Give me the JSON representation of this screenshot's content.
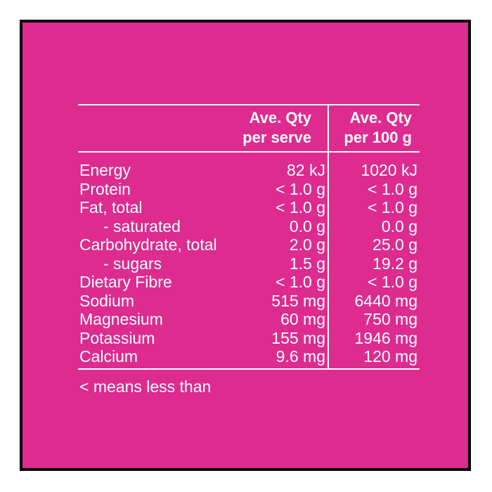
{
  "header": {
    "serve_line1": "Ave. Qty",
    "serve_line2": "per serve",
    "per100_line1": "Ave. Qty",
    "per100_line2": "per 100 g"
  },
  "rows": [
    {
      "name": "Energy",
      "serve": "82 kJ",
      "per100": "1020 kJ"
    },
    {
      "name": "Protein",
      "serve": "< 1.0 g",
      "per100": "< 1.0 g"
    },
    {
      "name": "Fat, total",
      "serve": "< 1.0 g",
      "per100": "< 1.0 g"
    },
    {
      "name": "- saturated",
      "serve": "0.0 g",
      "per100": "0.0 g",
      "indent": true
    },
    {
      "name": "Carbohydrate, total",
      "serve": "2.0 g",
      "per100": "25.0 g"
    },
    {
      "name": "- sugars",
      "serve": "1.5 g",
      "per100": "19.2 g",
      "indent": true
    },
    {
      "name": "Dietary Fibre",
      "serve": "< 1.0 g",
      "per100": "< 1.0 g"
    },
    {
      "name": "Sodium",
      "serve": "515 mg",
      "per100": "6440 mg"
    },
    {
      "name": "Magnesium",
      "serve": "60 mg",
      "per100": "750 mg"
    },
    {
      "name": "Potassium",
      "serve": "155 mg",
      "per100": "1946 mg"
    },
    {
      "name": "Calcium",
      "serve": "9.6 mg",
      "per100": "120 mg"
    }
  ],
  "footnote": "< means less than",
  "colors": {
    "background": "#dd2b8f",
    "text": "#ffffff",
    "frame": "#000000"
  }
}
